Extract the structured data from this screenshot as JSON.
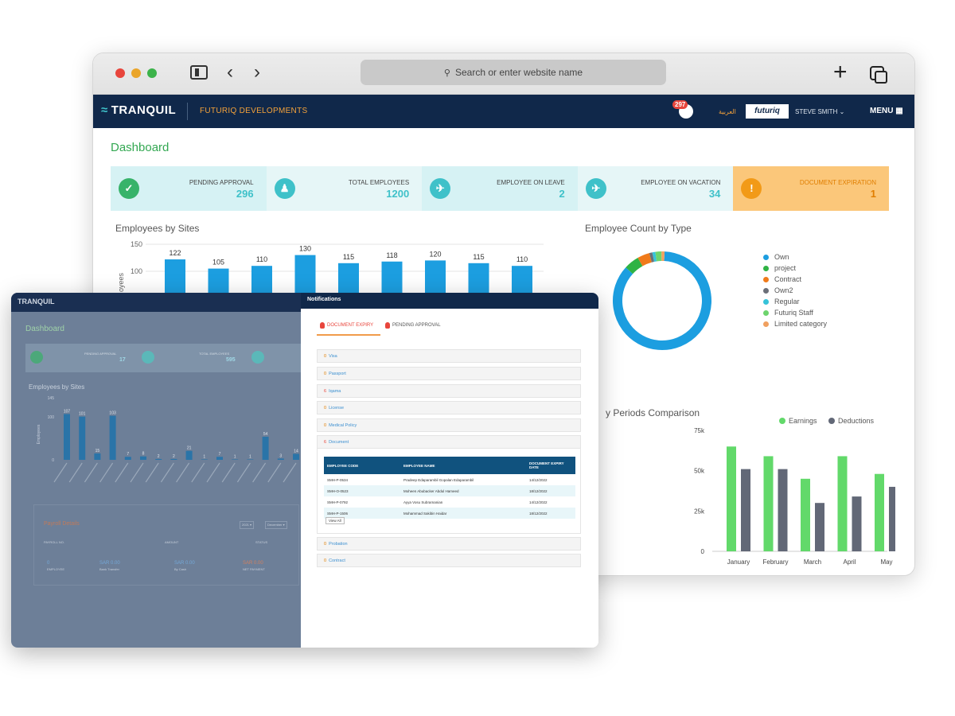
{
  "browser": {
    "url_placeholder": "Search or enter website name"
  },
  "app": {
    "logo": "TRANQUIL",
    "company": "FUTURIQ DEVELOPMENTS",
    "notification_count": "297",
    "language": "العربية",
    "brand": "futuriq",
    "user": "STEVE SMITH",
    "menu": "MENU"
  },
  "dashboard": {
    "title": "Dashboard",
    "cards": [
      {
        "label": "PENDING APPROVAL",
        "value": "296"
      },
      {
        "label": "TOTAL EMPLOYEES",
        "value": "1200"
      },
      {
        "label": "EMPLOYEE ON LEAVE",
        "value": "2"
      },
      {
        "label": "EMPLOYEE ON VACATION",
        "value": "34"
      },
      {
        "label": "DOCUMENT EXPIRATION",
        "value": "1"
      }
    ],
    "sites_title": "Employees by Sites",
    "count_title": "Employee Count by Type",
    "periods_title": "y Periods Comparison",
    "colors": {
      "accent": "#3fc1c9",
      "warn": "#f29a17",
      "navy": "#10284a",
      "green": "#33a852"
    }
  },
  "chart_data": [
    {
      "type": "bar",
      "title": "Employees by Sites",
      "ylabel": "oyees",
      "ylim": [
        0,
        150
      ],
      "yticks": [
        150,
        100
      ],
      "categories": [
        "",
        "",
        "",
        "",
        "",
        "",
        "",
        "",
        ""
      ],
      "values": [
        122,
        105,
        110,
        130,
        115,
        118,
        120,
        115,
        110
      ]
    },
    {
      "type": "pie",
      "title": "Employee Count by Type",
      "legend": [
        "Own",
        "project",
        "Contract",
        "Own2",
        "Regular",
        "Futuriq Staff",
        "Limited category"
      ],
      "colors": [
        "#1c9ee0",
        "#2fb344",
        "#f07a1a",
        "#6b6f78",
        "#36c3d9",
        "#6dd46d",
        "#f0a060"
      ],
      "values": [
        86,
        5,
        4,
        1,
        1,
        2,
        1
      ]
    },
    {
      "type": "bar",
      "title": "y Periods Comparison",
      "categories": [
        "January",
        "February",
        "March",
        "April",
        "May"
      ],
      "yticks": [
        "75k",
        "50k",
        "25k",
        "0"
      ],
      "ylim": [
        0,
        75
      ],
      "series": [
        {
          "name": "Earnings",
          "color": "#62d96a",
          "values": [
            65,
            59,
            45,
            59,
            48
          ]
        },
        {
          "name": "Deductions",
          "color": "#626877",
          "values": [
            51,
            51,
            30,
            34,
            40
          ]
        }
      ]
    },
    {
      "type": "bar",
      "title": "Employees by Sites",
      "ylabel": "Employees",
      "ylim": [
        0,
        145
      ],
      "yticks": [
        145,
        100,
        0
      ],
      "values": [
        107,
        101,
        15,
        103,
        7,
        8,
        2,
        2,
        21,
        1,
        7,
        1,
        1,
        54,
        3,
        14
      ],
      "labels": [
        "107",
        "101",
        "15",
        "103",
        "7",
        "8",
        "2",
        "2",
        "21",
        "1",
        "7",
        "1",
        "1",
        "54",
        "3",
        "14"
      ]
    }
  ],
  "front": {
    "logo": "TRANQUIL",
    "dash_title": "Dashboard",
    "card1_label": "PENDING APPROVAL",
    "card1_value": "17",
    "card2_label": "TOTAL EMPLOYEES",
    "card2_value": "595",
    "sites_title": "Employees by Sites",
    "payroll": {
      "title": "Payroll Details",
      "year": "2021",
      "month": "December",
      "head_payroll": "PAYROLL NO.",
      "head_amount": "AMOUNT",
      "head_status": "STATUS",
      "v1": "0",
      "s1": "EMPLOYEE",
      "v2": "SAR 0.00",
      "s2": "Bank Transfer",
      "v3": "SAR 0.00",
      "s3": "By Cash",
      "v4": "SAR 0.00",
      "s4": "NET PAYMENT"
    }
  },
  "notifications": {
    "title": "Notifications",
    "tab_expiry": "DOCUMENT EXPIRY",
    "tab_pending": "PENDING APPROVAL",
    "rows": [
      {
        "count": "0",
        "label": "Visa"
      },
      {
        "count": "0",
        "label": "Passport"
      },
      {
        "count": "6",
        "label": "Iqama"
      },
      {
        "count": "0",
        "label": "License"
      },
      {
        "count": "0",
        "label": "Medical Policy"
      },
      {
        "count": "6",
        "label": "Document"
      }
    ],
    "rows_after": [
      {
        "count": "0",
        "label": "Probation"
      },
      {
        "count": "0",
        "label": "Contract"
      }
    ],
    "table": {
      "headers": [
        "EMPLOYEE CODE",
        "EMPLOYEE NAME",
        "DOCUMENT EXPIRY DATE"
      ],
      "rows": [
        [
          "SMH-P-0534",
          "Pradeep Edaparambil Gopalan Edaparambil",
          "14/12/2022"
        ],
        [
          "SMH-O-0523",
          "Moheen Abubacker Abdul Hameed",
          "18/12/2022"
        ],
        [
          "SMH-P-0792",
          "Ayya Vosu Subramanian",
          "14/12/2022"
        ],
        [
          "SMH-P-1506",
          "Mohammad Sakibin Haidar",
          "18/12/2022"
        ]
      ],
      "view_all": "View All"
    }
  }
}
